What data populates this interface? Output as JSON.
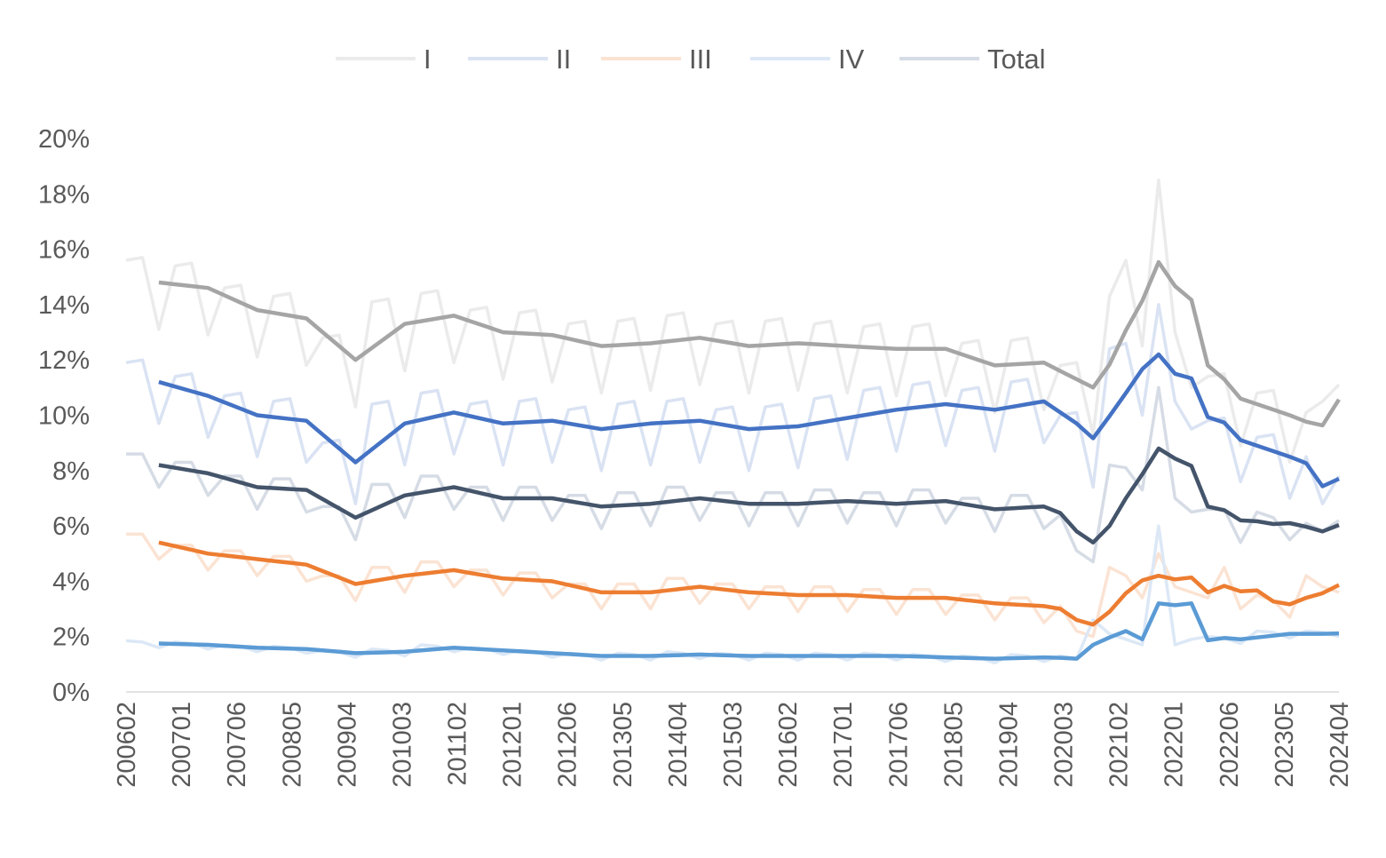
{
  "chart_data": {
    "type": "line",
    "title": "",
    "xlabel": "",
    "ylabel": "",
    "ylim": [
      0,
      20
    ],
    "y_ticks": [
      "0%",
      "2%",
      "4%",
      "6%",
      "8%",
      "10%",
      "12%",
      "14%",
      "16%",
      "18%",
      "20%"
    ],
    "x_tick_labels": [
      "200602",
      "200701",
      "200706",
      "200805",
      "200904",
      "201003",
      "201102",
      "201201",
      "201206",
      "201305",
      "201404",
      "201503",
      "201602",
      "201701",
      "201706",
      "201805",
      "201904",
      "202003",
      "202102",
      "202201",
      "202206",
      "202305",
      "202404"
    ],
    "legend_position": "top",
    "grid": false,
    "trend": "3-period moving average drawn as bold line for each series",
    "series": [
      {
        "name": "I",
        "color": "#ebebeb",
        "trend_color": "#a5a5a5",
        "values": [
          15.6,
          15.7,
          13.1,
          15.4,
          15.5,
          12.9,
          14.6,
          14.7,
          12.1,
          14.3,
          14.4,
          11.8,
          12.8,
          12.9,
          10.3,
          14.1,
          14.2,
          11.6,
          14.4,
          14.5,
          11.9,
          13.8,
          13.9,
          11.3,
          13.7,
          13.8,
          11.2,
          13.3,
          13.4,
          10.8,
          13.4,
          13.5,
          10.9,
          13.6,
          13.7,
          11.1,
          13.3,
          13.4,
          10.8,
          13.4,
          13.5,
          10.9,
          13.3,
          13.4,
          10.8,
          13.2,
          13.3,
          10.7,
          13.2,
          13.3,
          10.7,
          12.6,
          12.7,
          10.1,
          12.7,
          12.8,
          10.2,
          11.8,
          11.9,
          9.3,
          14.3,
          15.6,
          12.5,
          18.5,
          13.0,
          11.0,
          11.4,
          11.5,
          8.9,
          10.8,
          10.9,
          8.3,
          10.1,
          10.5,
          11.1
        ]
      },
      {
        "name": "II",
        "color": "#dae3f3",
        "trend_color": "#4472c4",
        "values": [
          11.9,
          12.0,
          9.7,
          11.4,
          11.5,
          9.2,
          10.7,
          10.8,
          8.5,
          10.5,
          10.6,
          8.3,
          9.0,
          9.1,
          6.8,
          10.4,
          10.5,
          8.2,
          10.8,
          10.9,
          8.6,
          10.4,
          10.5,
          8.2,
          10.5,
          10.6,
          8.3,
          10.2,
          10.3,
          8.0,
          10.4,
          10.5,
          8.2,
          10.5,
          10.6,
          8.3,
          10.2,
          10.3,
          8.0,
          10.3,
          10.4,
          8.1,
          10.6,
          10.7,
          8.4,
          10.9,
          11.0,
          8.7,
          11.1,
          11.2,
          8.9,
          10.9,
          11.0,
          8.7,
          11.2,
          11.3,
          9.0,
          10.0,
          10.1,
          7.4,
          12.4,
          12.6,
          10.0,
          14.0,
          10.5,
          9.5,
          9.8,
          9.9,
          7.6,
          9.2,
          9.3,
          7.0,
          8.5,
          6.8,
          7.8
        ]
      },
      {
        "name": "III",
        "color": "#fbe3d3",
        "trend_color": "#ed7d31",
        "values": [
          5.7,
          5.7,
          4.8,
          5.3,
          5.3,
          4.4,
          5.1,
          5.1,
          4.2,
          4.9,
          4.9,
          4.0,
          4.2,
          4.2,
          3.3,
          4.5,
          4.5,
          3.6,
          4.7,
          4.7,
          3.8,
          4.4,
          4.4,
          3.5,
          4.3,
          4.3,
          3.4,
          3.9,
          3.9,
          3.0,
          3.9,
          3.9,
          3.0,
          4.1,
          4.1,
          3.2,
          3.9,
          3.9,
          3.0,
          3.8,
          3.8,
          2.9,
          3.8,
          3.8,
          2.9,
          3.7,
          3.7,
          2.8,
          3.7,
          3.7,
          2.8,
          3.5,
          3.5,
          2.6,
          3.4,
          3.4,
          2.5,
          3.1,
          2.2,
          2.0,
          4.5,
          4.2,
          3.4,
          5.0,
          3.8,
          3.6,
          3.4,
          4.5,
          3.0,
          3.5,
          3.3,
          2.7,
          4.2,
          3.8,
          3.6
        ]
      },
      {
        "name": "IV",
        "color": "#dce8f6",
        "trend_color": "#5b9bd5",
        "values": [
          1.85,
          1.8,
          1.6,
          1.8,
          1.75,
          1.55,
          1.7,
          1.65,
          1.45,
          1.65,
          1.6,
          1.4,
          1.5,
          1.45,
          1.25,
          1.55,
          1.5,
          1.3,
          1.7,
          1.65,
          1.45,
          1.6,
          1.55,
          1.35,
          1.5,
          1.45,
          1.25,
          1.4,
          1.35,
          1.15,
          1.4,
          1.35,
          1.15,
          1.45,
          1.4,
          1.2,
          1.4,
          1.35,
          1.15,
          1.4,
          1.35,
          1.15,
          1.4,
          1.35,
          1.15,
          1.4,
          1.35,
          1.15,
          1.35,
          1.3,
          1.1,
          1.3,
          1.25,
          1.05,
          1.35,
          1.3,
          1.1,
          1.3,
          1.2,
          2.6,
          2.1,
          1.9,
          1.7,
          6.0,
          1.7,
          1.9,
          2.0,
          1.95,
          1.75,
          2.2,
          2.15,
          1.95,
          2.2,
          2.15,
          2.0
        ]
      },
      {
        "name": "Total",
        "color": "#d6dce5",
        "trend_color": "#44546a",
        "values": [
          8.6,
          8.6,
          7.4,
          8.3,
          8.3,
          7.1,
          7.8,
          7.8,
          6.6,
          7.7,
          7.7,
          6.5,
          6.7,
          6.7,
          5.5,
          7.5,
          7.5,
          6.3,
          7.8,
          7.8,
          6.6,
          7.4,
          7.4,
          6.2,
          7.4,
          7.4,
          6.2,
          7.1,
          7.1,
          5.9,
          7.2,
          7.2,
          6.0,
          7.4,
          7.4,
          6.2,
          7.2,
          7.2,
          6.0,
          7.2,
          7.2,
          6.0,
          7.3,
          7.3,
          6.1,
          7.2,
          7.2,
          6.0,
          7.3,
          7.3,
          6.1,
          7.0,
          7.0,
          5.8,
          7.1,
          7.1,
          5.9,
          6.4,
          5.1,
          4.7,
          8.2,
          8.1,
          7.3,
          11.0,
          7.0,
          6.5,
          6.6,
          6.6,
          5.4,
          6.5,
          6.3,
          5.5,
          6.1,
          5.8,
          6.2
        ]
      }
    ]
  }
}
